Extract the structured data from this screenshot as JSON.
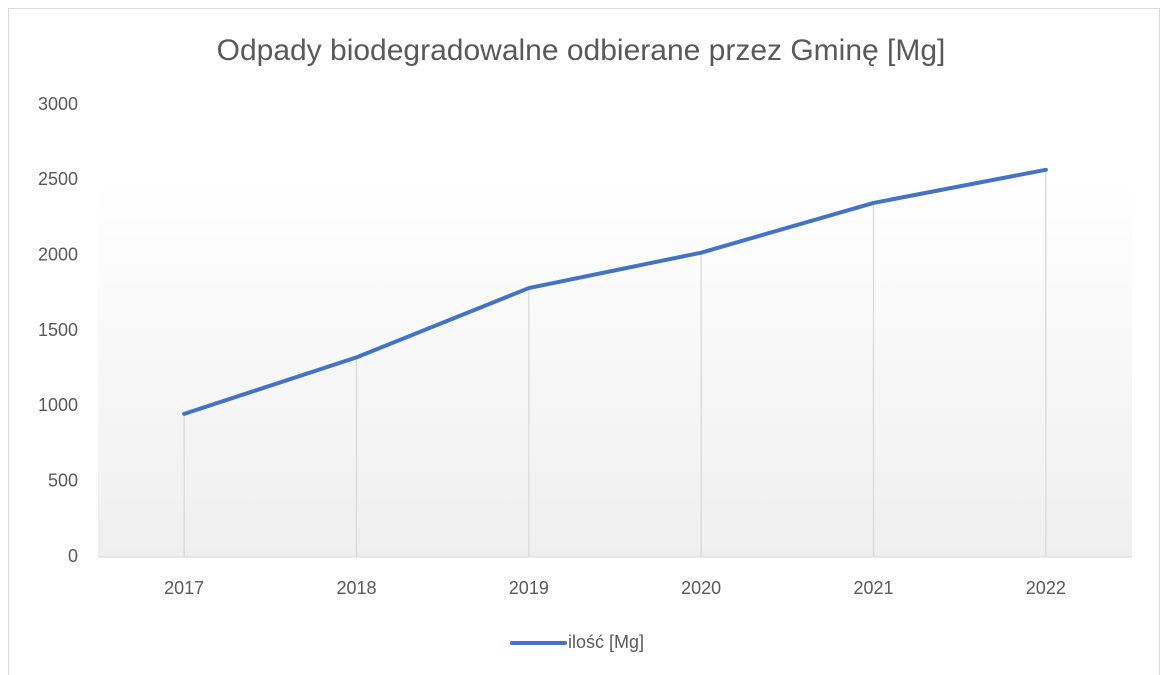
{
  "chart_data": {
    "type": "line",
    "title": "Odpady biodegradowalne odbierane przez Gminę [Mg]",
    "categories": [
      "2017",
      "2018",
      "2019",
      "2020",
      "2021",
      "2022"
    ],
    "series": [
      {
        "name": "ilość [Mg]",
        "color": "#4472c4",
        "values": [
          950,
          1325,
          1785,
          2020,
          2350,
          2570
        ]
      }
    ],
    "ylim": [
      0,
      3000
    ],
    "yticks": [
      0,
      500,
      1000,
      1500,
      2000,
      2500,
      3000
    ],
    "drop_lines": true,
    "legend": "bottom"
  }
}
